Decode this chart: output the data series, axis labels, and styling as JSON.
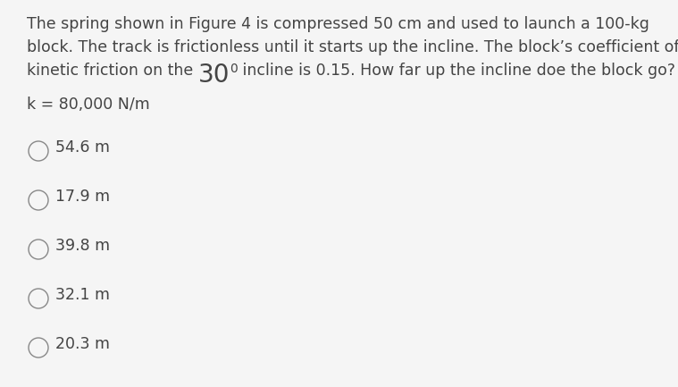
{
  "background_color": "#f5f5f5",
  "question_line1": "The spring shown in Figure 4 is compressed 50 cm and used to launch a 100-kg",
  "question_line2": "block. The track is frictionless until it starts up the incline. The block’s coefficient of",
  "question_line3_pre": "kinetic friction on the ",
  "question_line3_bold": "30",
  "question_line3_sup": "0",
  "question_line3_post": " incline is 0.15. How far up the incline doe the block go?",
  "k_line": "k = 80,000 N/m",
  "choices": [
    "54.6 m",
    "17.9 m",
    "39.8 m",
    "32.1 m",
    "20.3 m"
  ],
  "text_color": "#444444",
  "circle_color": "#888888",
  "font_size_question": 12.5,
  "font_size_choices": 12.5,
  "font_size_k": 12.5,
  "fig_width": 7.59,
  "fig_height": 4.33,
  "dpi": 100
}
